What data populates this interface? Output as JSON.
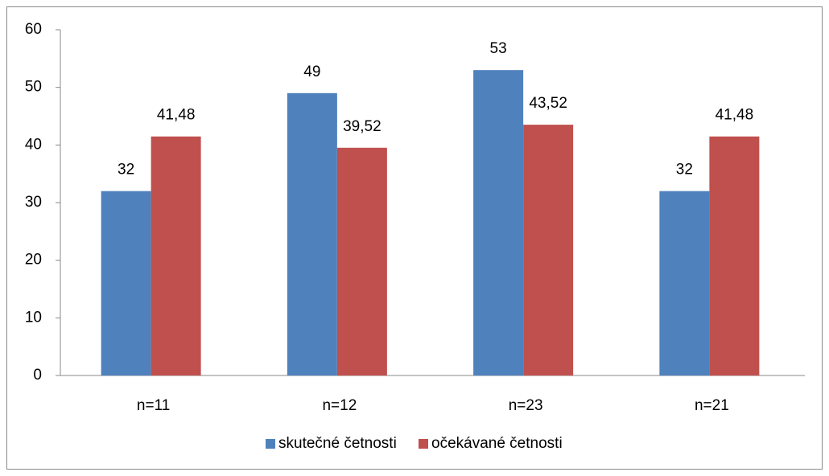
{
  "chart_data": {
    "type": "bar",
    "categories": [
      "n=11",
      "n=12",
      "n=23",
      "n=21"
    ],
    "series": [
      {
        "name": "skutečné četnosti",
        "color": "#4f81bd",
        "values": [
          32,
          49,
          53,
          32
        ]
      },
      {
        "name": "očekávané četnosti",
        "color": "#c0504d",
        "values": [
          41.48,
          39.52,
          43.52,
          41.48
        ],
        "value_labels": [
          "41,48",
          "39,52",
          "43,52",
          "41,48"
        ]
      }
    ],
    "ylim": [
      0,
      60
    ],
    "yticks": [
      0,
      10,
      20,
      30,
      40,
      50,
      60
    ],
    "grid": false,
    "legend": "bottom"
  }
}
